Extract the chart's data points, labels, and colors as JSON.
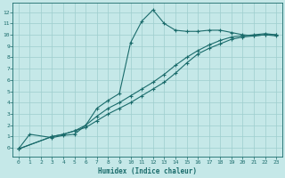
{
  "xlabel": "Humidex (Indice chaleur)",
  "bg_color": "#c5e8e8",
  "grid_color": "#9ecece",
  "line_color": "#1a6b6b",
  "xlim": [
    -0.5,
    23.5
  ],
  "ylim": [
    -0.8,
    12.8
  ],
  "xticks": [
    0,
    1,
    2,
    3,
    4,
    5,
    6,
    7,
    8,
    9,
    10,
    11,
    12,
    13,
    14,
    15,
    16,
    17,
    18,
    19,
    20,
    21,
    22,
    23
  ],
  "yticks": [
    0,
    1,
    2,
    3,
    4,
    5,
    6,
    7,
    8,
    9,
    10,
    11,
    12
  ],
  "line1_x": [
    0,
    1,
    3,
    4,
    5,
    6,
    7,
    8,
    9,
    10,
    11,
    12,
    13,
    14,
    15,
    16,
    17,
    18,
    19,
    20,
    21,
    22,
    23
  ],
  "line1_y": [
    -0.1,
    1.2,
    0.9,
    1.1,
    1.2,
    2.0,
    3.5,
    4.2,
    4.8,
    9.3,
    11.2,
    12.2,
    11.0,
    10.4,
    10.3,
    10.3,
    10.4,
    10.4,
    10.2,
    10.0,
    9.9,
    10.0,
    10.0
  ],
  "line2_x": [
    0,
    3,
    4,
    5,
    6,
    7,
    8,
    9,
    10,
    11,
    12,
    13,
    14,
    15,
    16,
    17,
    18,
    19,
    20,
    21,
    22,
    23
  ],
  "line2_y": [
    -0.1,
    1.0,
    1.2,
    1.5,
    2.0,
    2.8,
    3.5,
    4.0,
    4.6,
    5.2,
    5.8,
    6.5,
    7.3,
    8.0,
    8.6,
    9.1,
    9.5,
    9.8,
    9.9,
    10.0,
    10.1,
    10.0
  ],
  "line3_x": [
    0,
    3,
    4,
    5,
    6,
    7,
    8,
    9,
    10,
    11,
    12,
    13,
    14,
    15,
    16,
    17,
    18,
    19,
    20,
    21,
    22,
    23
  ],
  "line3_y": [
    -0.1,
    1.0,
    1.2,
    1.5,
    1.8,
    2.4,
    3.0,
    3.5,
    4.0,
    4.6,
    5.2,
    5.8,
    6.6,
    7.5,
    8.3,
    8.8,
    9.2,
    9.6,
    9.8,
    9.9,
    10.0,
    9.9
  ]
}
